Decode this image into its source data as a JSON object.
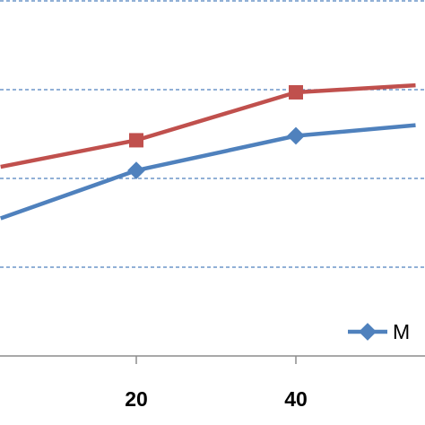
{
  "chart_data": {
    "type": "line",
    "x_ticks": [
      20,
      40
    ],
    "xlim": [
      3,
      55
    ],
    "ylim": [
      0,
      4
    ],
    "grid": {
      "horizontal": true,
      "style": "dashed",
      "values": [
        1,
        2,
        3,
        4
      ]
    },
    "legend": {
      "placement": "bottom-right",
      "entries": [
        "M"
      ]
    },
    "series": [
      {
        "color": "#c0504d",
        "marker": "square",
        "points": [
          {
            "x": 3,
            "y": 2.13
          },
          {
            "x": 20,
            "y": 2.43
          },
          {
            "x": 40,
            "y": 2.97
          },
          {
            "x": 55,
            "y": 3.05
          }
        ]
      },
      {
        "color": "#4f81bd",
        "marker": "diamond",
        "points": [
          {
            "x": 3,
            "y": 1.55
          },
          {
            "x": 20,
            "y": 2.09
          },
          {
            "x": 40,
            "y": 2.48
          },
          {
            "x": 55,
            "y": 2.6
          }
        ]
      }
    ]
  }
}
